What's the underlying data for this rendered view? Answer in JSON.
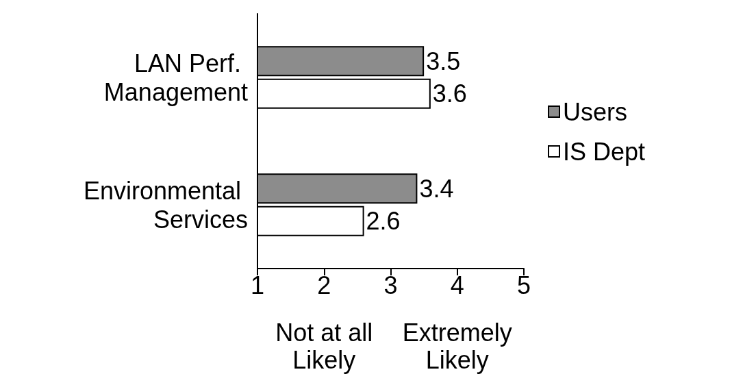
{
  "chart_data": {
    "type": "bar",
    "orientation": "horizontal",
    "categories": [
      "LAN Perf. Management",
      "Environmental Services"
    ],
    "series": [
      {
        "name": "Users",
        "color": "#8c8c8c",
        "values": [
          3.5,
          3.4
        ]
      },
      {
        "name": "IS Dept",
        "color": "#ffffff",
        "values": [
          3.6,
          2.6
        ]
      }
    ],
    "xlim": [
      1,
      5
    ],
    "xticks": [
      1,
      2,
      3,
      4,
      5
    ],
    "data_labels": true,
    "legend": "right",
    "grid": false,
    "annotations": [
      "Not at all Likely",
      "Extremely Likely"
    ]
  }
}
